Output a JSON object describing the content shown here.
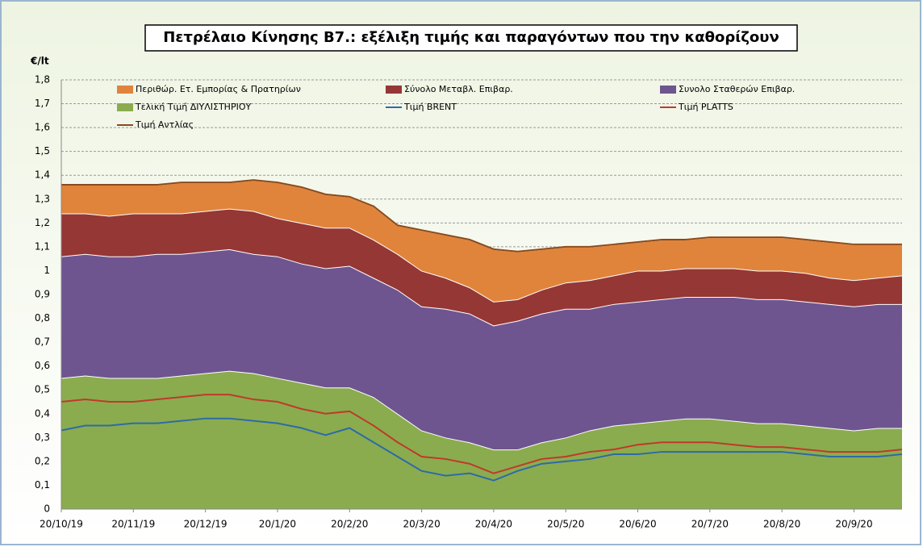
{
  "chart_data": {
    "type": "stacked_area",
    "title": "Πετρέλαιο Κίνησης Β7.: εξέλιξη τιμής και παραγόντων που την καθορίζουν",
    "y_label": "€/lt",
    "categories": [
      "20/10/19",
      null,
      null,
      "20/11/19",
      null,
      null,
      "20/12/19",
      null,
      null,
      "20/1/20",
      null,
      null,
      "20/2/20",
      null,
      null,
      "20/3/20",
      null,
      null,
      "20/4/20",
      null,
      null,
      "20/5/20",
      null,
      null,
      "20/6/20",
      null,
      null,
      "20/7/20",
      null,
      null,
      "20/8/20",
      null,
      null,
      "20/9/20",
      null,
      null
    ],
    "ylim": [
      0,
      1.8
    ],
    "yticks": [
      0,
      {
        "value": 0.1,
        "label": "0,1"
      },
      {
        "value": 0.2,
        "label": "0,2"
      },
      {
        "value": 0.3,
        "label": "0,3"
      },
      {
        "value": 0.4,
        "label": "0,4"
      },
      {
        "value": 0.5,
        "label": "0,5"
      },
      {
        "value": 0.6,
        "label": "0,6"
      },
      {
        "value": 0.7,
        "label": "0,7"
      },
      {
        "value": 0.8,
        "label": "0,8"
      },
      {
        "value": 0.9,
        "label": "0,9"
      },
      1,
      {
        "value": 1.1,
        "label": "1,1"
      },
      {
        "value": 1.2,
        "label": "1,2"
      },
      {
        "value": 1.3,
        "label": "1,3"
      },
      {
        "value": 1.4,
        "label": "1,4"
      },
      {
        "value": 1.5,
        "label": "1,5"
      },
      {
        "value": 1.6,
        "label": "1,6"
      },
      {
        "value": 1.7,
        "label": "1,7"
      },
      {
        "value": 1.8,
        "label": "1,8"
      }
    ],
    "grid": true,
    "legend_order": [
      3,
      2,
      1,
      0,
      4,
      5,
      6
    ],
    "series": [
      {
        "name": "Τελική Τιμή ΔΙΥΛΙΣΤΗΡΙΟΥ",
        "kind": "area",
        "color": "#8aac4e",
        "values": [
          0.55,
          0.56,
          0.55,
          0.55,
          0.55,
          0.56,
          0.57,
          0.58,
          0.57,
          0.55,
          0.53,
          0.51,
          0.51,
          0.47,
          0.4,
          0.33,
          0.3,
          0.28,
          0.25,
          0.25,
          0.28,
          0.3,
          0.33,
          0.35,
          0.36,
          0.37,
          0.38,
          0.38,
          0.37,
          0.36,
          0.36,
          0.35,
          0.34,
          0.33,
          0.34,
          0.34
        ]
      },
      {
        "name": "Συνολο Σταθερών Επιβαρ.",
        "kind": "area",
        "color": "#6f5590",
        "values": [
          0.51,
          0.51,
          0.51,
          0.51,
          0.52,
          0.51,
          0.51,
          0.51,
          0.5,
          0.51,
          0.5,
          0.5,
          0.51,
          0.5,
          0.52,
          0.52,
          0.54,
          0.54,
          0.52,
          0.54,
          0.54,
          0.54,
          0.51,
          0.51,
          0.51,
          0.51,
          0.51,
          0.51,
          0.52,
          0.52,
          0.52,
          0.52,
          0.52,
          0.52,
          0.52,
          0.52
        ]
      },
      {
        "name": "Σύνολο Μεταβλ. Επιβαρ.",
        "kind": "area",
        "color": "#953735",
        "values": [
          0.18,
          0.17,
          0.17,
          0.18,
          0.17,
          0.17,
          0.17,
          0.17,
          0.18,
          0.16,
          0.17,
          0.17,
          0.16,
          0.16,
          0.15,
          0.15,
          0.13,
          0.11,
          0.1,
          0.09,
          0.1,
          0.11,
          0.12,
          0.12,
          0.13,
          0.12,
          0.12,
          0.12,
          0.12,
          0.12,
          0.12,
          0.12,
          0.11,
          0.11,
          0.11,
          0.12
        ]
      },
      {
        "name": "Περιθώρ. Ετ. Εμπορίας & Πρατηρίων",
        "kind": "area",
        "color": "#e0843c",
        "values": [
          0.12,
          0.12,
          0.13,
          0.12,
          0.12,
          0.13,
          0.12,
          0.11,
          0.13,
          0.15,
          0.15,
          0.14,
          0.13,
          0.14,
          0.12,
          0.17,
          0.18,
          0.2,
          0.22,
          0.2,
          0.17,
          0.15,
          0.14,
          0.13,
          0.12,
          0.13,
          0.12,
          0.13,
          0.13,
          0.14,
          0.14,
          0.14,
          0.15,
          0.15,
          0.14,
          0.13
        ]
      },
      {
        "name": "Τιμή BRENT",
        "kind": "line",
        "color": "#2e6aa8",
        "values": [
          0.33,
          0.35,
          0.35,
          0.36,
          0.36,
          0.37,
          0.38,
          0.38,
          0.37,
          0.36,
          0.34,
          0.31,
          0.34,
          0.28,
          0.22,
          0.16,
          0.14,
          0.15,
          0.12,
          0.16,
          0.19,
          0.2,
          0.21,
          0.23,
          0.23,
          0.24,
          0.24,
          0.24,
          0.24,
          0.24,
          0.24,
          0.23,
          0.22,
          0.22,
          0.22,
          0.23
        ]
      },
      {
        "name": "Τιμή PLATTS",
        "kind": "line",
        "color": "#c0392b",
        "values": [
          0.45,
          0.46,
          0.45,
          0.45,
          0.46,
          0.47,
          0.48,
          0.48,
          0.46,
          0.45,
          0.42,
          0.4,
          0.41,
          0.35,
          0.28,
          0.22,
          0.21,
          0.19,
          0.15,
          0.18,
          0.21,
          0.22,
          0.24,
          0.25,
          0.27,
          0.28,
          0.28,
          0.28,
          0.27,
          0.26,
          0.26,
          0.25,
          0.24,
          0.24,
          0.24,
          0.25
        ]
      },
      {
        "name": "Τιμή Αντλίας",
        "kind": "line",
        "color": "#8b4a1a",
        "values": [
          1.36,
          1.36,
          1.36,
          1.36,
          1.36,
          1.37,
          1.37,
          1.37,
          1.38,
          1.37,
          1.35,
          1.32,
          1.31,
          1.27,
          1.19,
          1.17,
          1.15,
          1.13,
          1.09,
          1.08,
          1.09,
          1.1,
          1.1,
          1.11,
          1.12,
          1.13,
          1.13,
          1.14,
          1.14,
          1.14,
          1.14,
          1.13,
          1.12,
          1.11,
          1.11,
          1.11
        ]
      }
    ]
  }
}
